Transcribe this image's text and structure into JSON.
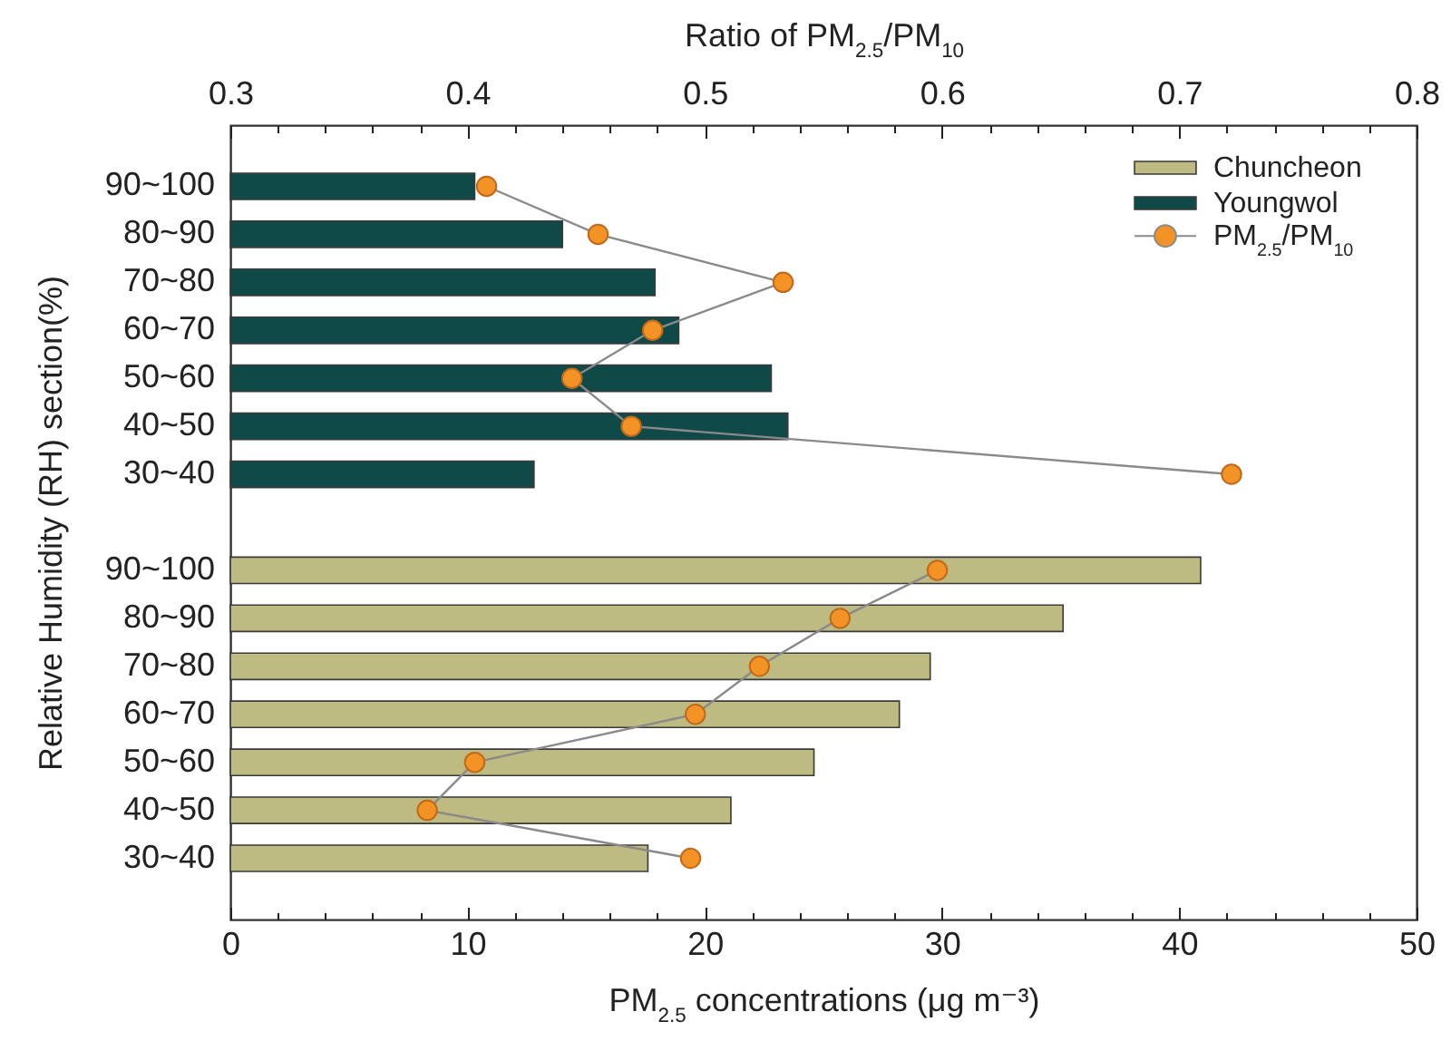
{
  "chart_data": {
    "type": "bar",
    "orientation": "horizontal",
    "xlabel": "PM$_{2.5}$ concentrations (μg m⁻³)",
    "ylabel": "Relative Humidity (RH) section(%)",
    "x2label": "Ratio of PM$_{2.5}$/PM$_{10}$",
    "categories": [
      "90~100",
      "80~90",
      "70~80",
      "60~70",
      "50~60",
      "40~50",
      "30~40",
      null,
      "90~100",
      "80~90",
      "70~80",
      "60~70",
      "50~60",
      "40~50",
      "30~40"
    ],
    "series": [
      {
        "name": "Chuncheon",
        "color": "#bdba82",
        "values": [
          null,
          null,
          null,
          null,
          null,
          null,
          null,
          null,
          40.9,
          35.1,
          29.5,
          28.2,
          24.6,
          21.1,
          17.6
        ]
      },
      {
        "name": "Youngwol",
        "color": "#0f4a48",
        "values": [
          10.3,
          14.0,
          17.9,
          18.9,
          22.8,
          23.5,
          12.8,
          null,
          null,
          null,
          null,
          null,
          null,
          null,
          null
        ]
      },
      {
        "name": "PM$_{2.5}$/PM$_{10}$",
        "type": "line",
        "axis": "x2",
        "color": "#f39325",
        "values": [
          0.408,
          0.455,
          0.533,
          0.478,
          0.444,
          0.469,
          0.722,
          null,
          0.598,
          0.557,
          0.523,
          0.496,
          0.403,
          0.383,
          0.494
        ]
      }
    ],
    "xlim": [
      0,
      50
    ],
    "xticks": [
      0,
      {
        "value": 2,
        "label": null
      },
      {
        "value": 4,
        "label": null
      },
      {
        "value": 6,
        "label": null
      },
      {
        "value": 8,
        "label": null
      },
      10,
      {
        "value": 12,
        "label": null
      },
      {
        "value": 14,
        "label": null
      },
      {
        "value": 16,
        "label": null
      },
      {
        "value": 18,
        "label": null
      },
      20,
      {
        "value": 22,
        "label": null
      },
      {
        "value": 24,
        "label": null
      },
      {
        "value": 26,
        "label": null
      },
      {
        "value": 28,
        "label": null
      },
      30,
      {
        "value": 32,
        "label": null
      },
      {
        "value": 34,
        "label": null
      },
      {
        "value": 36,
        "label": null
      },
      {
        "value": 38,
        "label": null
      },
      40,
      {
        "value": 42,
        "label": null
      },
      {
        "value": 44,
        "label": null
      },
      {
        "value": 46,
        "label": null
      },
      {
        "value": 48,
        "label": null
      },
      50
    ],
    "x2lim": [
      0.3,
      0.8
    ],
    "x2ticks": [
      0.3,
      {
        "value": 0.32,
        "label": null
      },
      {
        "value": 0.34,
        "label": null
      },
      {
        "value": 0.36,
        "label": null
      },
      {
        "value": 0.38,
        "label": null
      },
      0.4,
      {
        "value": 0.42,
        "label": null
      },
      {
        "value": 0.44,
        "label": null
      },
      {
        "value": 0.46,
        "label": null
      },
      {
        "value": 0.48,
        "label": null
      },
      0.5,
      {
        "value": 0.52,
        "label": null
      },
      {
        "value": 0.54,
        "label": null
      },
      {
        "value": 0.56,
        "label": null
      },
      {
        "value": 0.58,
        "label": null
      },
      0.6,
      {
        "value": 0.62,
        "label": null
      },
      {
        "value": 0.64,
        "label": null
      },
      {
        "value": 0.66,
        "label": null
      },
      {
        "value": 0.68,
        "label": null
      },
      0.7,
      {
        "value": 0.72,
        "label": null
      },
      {
        "value": 0.74,
        "label": null
      },
      {
        "value": 0.76,
        "label": null
      },
      {
        "value": 0.78,
        "label": null
      },
      0.8
    ],
    "legend": "top right",
    "marker": "circle"
  }
}
